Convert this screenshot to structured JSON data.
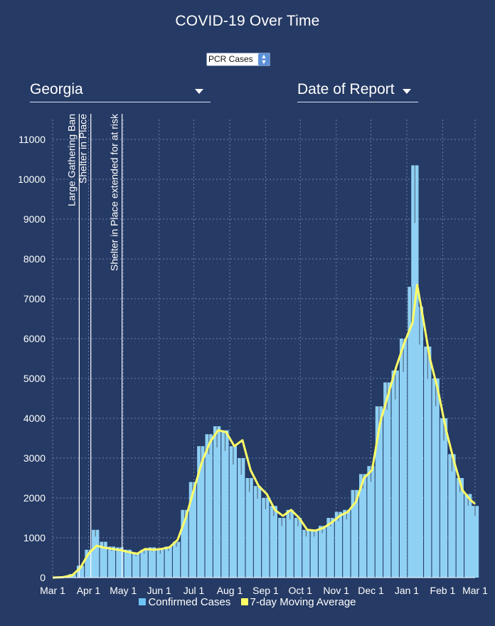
{
  "header": {
    "title": "COVID-19 Over Time",
    "metric_select": "PCR Cases",
    "state_select": "Georgia",
    "date_select": "Date of Report"
  },
  "legend": {
    "cases_label": "Confirmed Cases",
    "avg_label": "7-day Moving Average"
  },
  "colors": {
    "background": "#253a64",
    "bars": "#8fd1f5",
    "bar_spikes": "#5a6f86",
    "moving_average": "#ffff66",
    "gridlines": "#6a80aa"
  },
  "chart_data": {
    "type": "bar",
    "title": "COVID-19 Over Time",
    "y_ticks": [
      0,
      1000,
      2000,
      3000,
      4000,
      5000,
      6000,
      7000,
      8000,
      9000,
      10000,
      11000
    ],
    "ylim": [
      0,
      11500
    ],
    "x_range": [
      "2020-03-01",
      "2021-03-01"
    ],
    "x_ticks": [
      {
        "date": "2020-03-01",
        "label": "Mar 1"
      },
      {
        "date": "2020-04-01",
        "label": "Apr 1"
      },
      {
        "date": "2020-05-01",
        "label": "May 1"
      },
      {
        "date": "2020-06-01",
        "label": "Jun 1"
      },
      {
        "date": "2020-07-01",
        "label": "Jul 1"
      },
      {
        "date": "2020-08-01",
        "label": "Aug 1"
      },
      {
        "date": "2020-09-01",
        "label": "Sep 1"
      },
      {
        "date": "2020-10-01",
        "label": "Oct 1"
      },
      {
        "date": "2020-11-01",
        "label": "Nov 1"
      },
      {
        "date": "2020-12-01",
        "label": "Dec 1"
      },
      {
        "date": "2021-01-01",
        "label": "Jan 1"
      },
      {
        "date": "2021-02-01",
        "label": "Feb 1"
      },
      {
        "date": "2021-03-01",
        "label": "Mar 1"
      }
    ],
    "grid": true,
    "legend_position": "bottom",
    "events": [
      {
        "date": "2020-03-24",
        "label": "Large Gathering Ban"
      },
      {
        "date": "2020-04-03",
        "label": "Shelter in Place"
      },
      {
        "date": "2020-04-30",
        "label": "Shelter in Place extended for at risk"
      }
    ],
    "series": [
      {
        "name": "Confirmed Cases",
        "kind": "bar",
        "points": [
          {
            "date": "2020-03-01",
            "value": 0
          },
          {
            "date": "2020-03-10",
            "value": 20
          },
          {
            "date": "2020-03-18",
            "value": 90
          },
          {
            "date": "2020-03-25",
            "value": 300
          },
          {
            "date": "2020-04-01",
            "value": 700
          },
          {
            "date": "2020-04-07",
            "value": 1200
          },
          {
            "date": "2020-04-14",
            "value": 900
          },
          {
            "date": "2020-04-21",
            "value": 780
          },
          {
            "date": "2020-04-28",
            "value": 760
          },
          {
            "date": "2020-05-05",
            "value": 700
          },
          {
            "date": "2020-05-12",
            "value": 620
          },
          {
            "date": "2020-05-19",
            "value": 700
          },
          {
            "date": "2020-05-26",
            "value": 760
          },
          {
            "date": "2020-06-02",
            "value": 700
          },
          {
            "date": "2020-06-09",
            "value": 780
          },
          {
            "date": "2020-06-16",
            "value": 900
          },
          {
            "date": "2020-06-23",
            "value": 1700
          },
          {
            "date": "2020-06-30",
            "value": 2400
          },
          {
            "date": "2020-07-07",
            "value": 3300
          },
          {
            "date": "2020-07-14",
            "value": 3600
          },
          {
            "date": "2020-07-21",
            "value": 3800
          },
          {
            "date": "2020-07-28",
            "value": 3700
          },
          {
            "date": "2020-08-04",
            "value": 3300
          },
          {
            "date": "2020-08-11",
            "value": 3000
          },
          {
            "date": "2020-08-18",
            "value": 2500
          },
          {
            "date": "2020-08-25",
            "value": 2300
          },
          {
            "date": "2020-09-01",
            "value": 2000
          },
          {
            "date": "2020-09-08",
            "value": 1800
          },
          {
            "date": "2020-09-15",
            "value": 1500
          },
          {
            "date": "2020-09-22",
            "value": 1700
          },
          {
            "date": "2020-09-29",
            "value": 1500
          },
          {
            "date": "2020-10-06",
            "value": 1200
          },
          {
            "date": "2020-10-13",
            "value": 1200
          },
          {
            "date": "2020-10-20",
            "value": 1300
          },
          {
            "date": "2020-10-27",
            "value": 1500
          },
          {
            "date": "2020-11-03",
            "value": 1650
          },
          {
            "date": "2020-11-10",
            "value": 1700
          },
          {
            "date": "2020-11-17",
            "value": 2200
          },
          {
            "date": "2020-11-24",
            "value": 2600
          },
          {
            "date": "2020-12-01",
            "value": 2800
          },
          {
            "date": "2020-12-08",
            "value": 4300
          },
          {
            "date": "2020-12-15",
            "value": 4900
          },
          {
            "date": "2020-12-22",
            "value": 5200
          },
          {
            "date": "2020-12-29",
            "value": 6000
          },
          {
            "date": "2021-01-05",
            "value": 7300
          },
          {
            "date": "2021-01-08",
            "value": 10350
          },
          {
            "date": "2021-01-12",
            "value": 6800
          },
          {
            "date": "2021-01-19",
            "value": 5800
          },
          {
            "date": "2021-01-26",
            "value": 5000
          },
          {
            "date": "2021-02-02",
            "value": 4000
          },
          {
            "date": "2021-02-09",
            "value": 3100
          },
          {
            "date": "2021-02-16",
            "value": 2500
          },
          {
            "date": "2021-02-23",
            "value": 2100
          },
          {
            "date": "2021-03-01",
            "value": 1800
          }
        ]
      },
      {
        "name": "7-day Moving Average",
        "kind": "line",
        "points": [
          {
            "date": "2020-03-01",
            "value": 0
          },
          {
            "date": "2020-03-10",
            "value": 10
          },
          {
            "date": "2020-03-18",
            "value": 60
          },
          {
            "date": "2020-03-25",
            "value": 250
          },
          {
            "date": "2020-04-01",
            "value": 600
          },
          {
            "date": "2020-04-08",
            "value": 800
          },
          {
            "date": "2020-04-15",
            "value": 750
          },
          {
            "date": "2020-04-22",
            "value": 720
          },
          {
            "date": "2020-04-29",
            "value": 690
          },
          {
            "date": "2020-05-06",
            "value": 640
          },
          {
            "date": "2020-05-13",
            "value": 600
          },
          {
            "date": "2020-05-20",
            "value": 720
          },
          {
            "date": "2020-05-27",
            "value": 700
          },
          {
            "date": "2020-06-03",
            "value": 720
          },
          {
            "date": "2020-06-10",
            "value": 760
          },
          {
            "date": "2020-06-17",
            "value": 950
          },
          {
            "date": "2020-06-24",
            "value": 1500
          },
          {
            "date": "2020-07-01",
            "value": 2200
          },
          {
            "date": "2020-07-08",
            "value": 2900
          },
          {
            "date": "2020-07-15",
            "value": 3400
          },
          {
            "date": "2020-07-22",
            "value": 3700
          },
          {
            "date": "2020-07-29",
            "value": 3650
          },
          {
            "date": "2020-08-05",
            "value": 3300
          },
          {
            "date": "2020-08-12",
            "value": 3450
          },
          {
            "date": "2020-08-19",
            "value": 2700
          },
          {
            "date": "2020-08-26",
            "value": 2300
          },
          {
            "date": "2020-09-02",
            "value": 2100
          },
          {
            "date": "2020-09-09",
            "value": 1700
          },
          {
            "date": "2020-09-16",
            "value": 1550
          },
          {
            "date": "2020-09-23",
            "value": 1700
          },
          {
            "date": "2020-09-30",
            "value": 1500
          },
          {
            "date": "2020-10-07",
            "value": 1200
          },
          {
            "date": "2020-10-14",
            "value": 1180
          },
          {
            "date": "2020-10-21",
            "value": 1250
          },
          {
            "date": "2020-10-28",
            "value": 1380
          },
          {
            "date": "2020-11-04",
            "value": 1550
          },
          {
            "date": "2020-11-11",
            "value": 1650
          },
          {
            "date": "2020-11-18",
            "value": 1900
          },
          {
            "date": "2020-11-25",
            "value": 2500
          },
          {
            "date": "2020-12-02",
            "value": 2700
          },
          {
            "date": "2020-12-09",
            "value": 3900
          },
          {
            "date": "2020-12-16",
            "value": 4600
          },
          {
            "date": "2020-12-23",
            "value": 5300
          },
          {
            "date": "2020-12-30",
            "value": 5900
          },
          {
            "date": "2021-01-06",
            "value": 6400
          },
          {
            "date": "2021-01-10",
            "value": 7350
          },
          {
            "date": "2021-01-14",
            "value": 6700
          },
          {
            "date": "2021-01-21",
            "value": 5500
          },
          {
            "date": "2021-01-28",
            "value": 4700
          },
          {
            "date": "2021-02-04",
            "value": 3700
          },
          {
            "date": "2021-02-11",
            "value": 2900
          },
          {
            "date": "2021-02-18",
            "value": 2200
          },
          {
            "date": "2021-02-25",
            "value": 1950
          },
          {
            "date": "2021-03-01",
            "value": 1850
          }
        ]
      }
    ]
  }
}
